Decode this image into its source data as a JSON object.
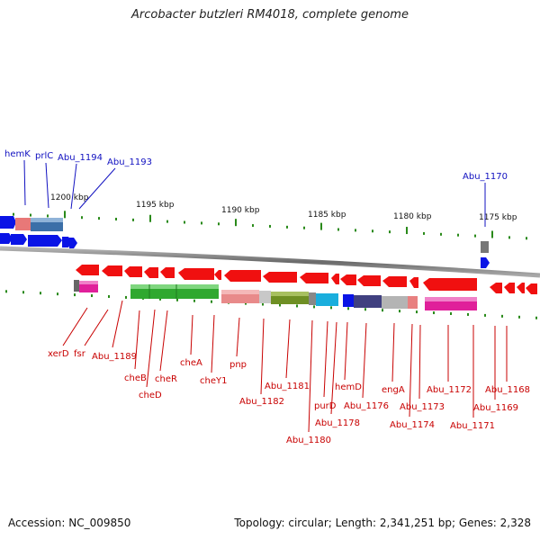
{
  "title": "Arcobacter butzleri RM4018, complete genome",
  "footer": {
    "accession": "Accession: NC_009850",
    "topology": "Topology: circular; Length: 2,341,251 bp; Genes: 2,328"
  },
  "colors": {
    "forward_gene": "#0a14e6",
    "reverse_gene": "#f01010",
    "forward_label": "#1010c0",
    "reverse_label": "#c80000",
    "backbone": "#8a8a8a",
    "tick": "#2a8a1a"
  },
  "scale_labels": [
    "1200 kbp",
    "1195 kbp",
    "1190 kbp",
    "1185 kbp",
    "1180 kbp",
    "1175 kbp"
  ],
  "forward_genes": [
    "hemK",
    "prlC",
    "Abu_1194",
    "Abu_1193",
    "Abu_1170"
  ],
  "reverse_genes": [
    "xerD",
    "fsr",
    "Abu_1189",
    "cheB",
    "cheD",
    "cheR",
    "cheA",
    "cheY1",
    "pnp",
    "Abu_1182",
    "Abu_1181",
    "Abu_1180",
    "purD",
    "Abu_1178",
    "hemD",
    "Abu_1176",
    "engA",
    "Abu_1174",
    "Abu_1173",
    "Abu_1172",
    "Abu_1171",
    "Abu_1169",
    "Abu_1168"
  ]
}
